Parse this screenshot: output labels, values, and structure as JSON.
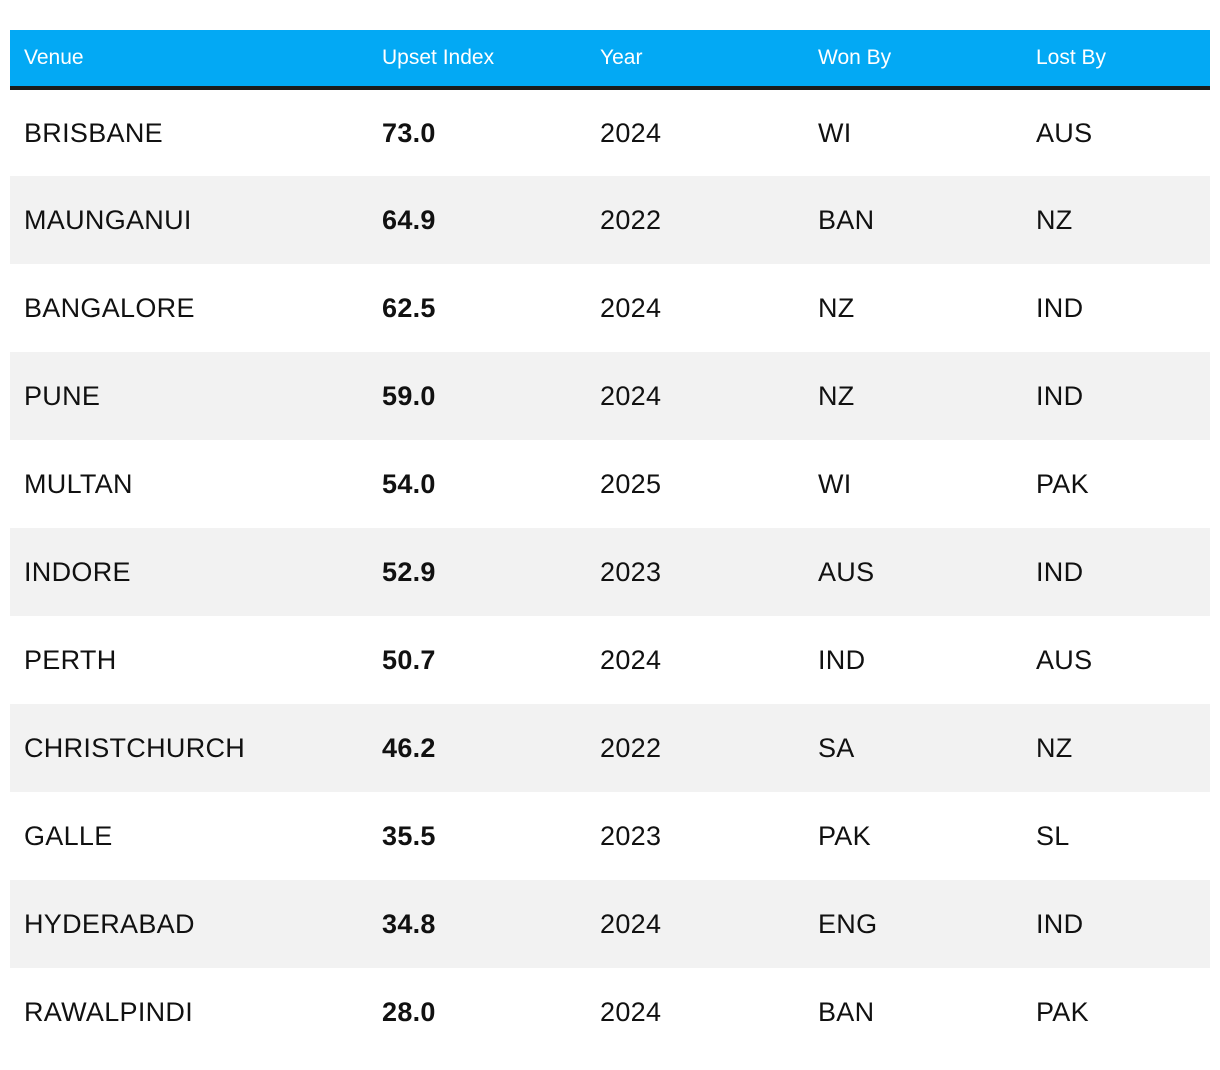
{
  "table": {
    "headers": {
      "venue": "Venue",
      "upset_index": "Upset Index",
      "year": "Year",
      "won_by": "Won By",
      "lost_by": "Lost By"
    },
    "rows": [
      {
        "venue": "BRISBANE",
        "upset_index": "73.0",
        "year": "2024",
        "won_by": "WI",
        "lost_by": "AUS"
      },
      {
        "venue": "MAUNGANUI",
        "upset_index": "64.9",
        "year": "2022",
        "won_by": "BAN",
        "lost_by": "NZ"
      },
      {
        "venue": "BANGALORE",
        "upset_index": "62.5",
        "year": "2024",
        "won_by": "NZ",
        "lost_by": "IND"
      },
      {
        "venue": "PUNE",
        "upset_index": "59.0",
        "year": "2024",
        "won_by": "NZ",
        "lost_by": "IND"
      },
      {
        "venue": "MULTAN",
        "upset_index": "54.0",
        "year": "2025",
        "won_by": "WI",
        "lost_by": "PAK"
      },
      {
        "venue": "INDORE",
        "upset_index": "52.9",
        "year": "2023",
        "won_by": "AUS",
        "lost_by": "IND"
      },
      {
        "venue": "PERTH",
        "upset_index": "50.7",
        "year": "2024",
        "won_by": "IND",
        "lost_by": "AUS"
      },
      {
        "venue": "CHRISTCHURCH",
        "upset_index": "46.2",
        "year": "2022",
        "won_by": "SA",
        "lost_by": "NZ"
      },
      {
        "venue": "GALLE",
        "upset_index": "35.5",
        "year": "2023",
        "won_by": "PAK",
        "lost_by": "SL"
      },
      {
        "venue": "HYDERABAD",
        "upset_index": "34.8",
        "year": "2024",
        "won_by": "ENG",
        "lost_by": "IND"
      },
      {
        "venue": "RAWALPINDI",
        "upset_index": "28.0",
        "year": "2024",
        "won_by": "BAN",
        "lost_by": "PAK"
      }
    ]
  },
  "colors": {
    "header_background": "#03a9f4",
    "header_text": "#ffffff",
    "header_rule": "#1b1b1b",
    "stripe_row": "#f2f2f2"
  }
}
